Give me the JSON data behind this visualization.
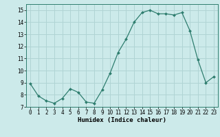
{
  "x": [
    0,
    1,
    2,
    3,
    4,
    5,
    6,
    7,
    8,
    9,
    10,
    11,
    12,
    13,
    14,
    15,
    16,
    17,
    18,
    19,
    20,
    21,
    22,
    23
  ],
  "y": [
    8.9,
    7.9,
    7.5,
    7.3,
    7.7,
    8.5,
    8.2,
    7.4,
    7.3,
    8.4,
    9.8,
    11.5,
    12.6,
    14.0,
    14.8,
    15.0,
    14.7,
    14.7,
    14.6,
    14.8,
    13.3,
    10.9,
    9.0,
    9.5
  ],
  "line_color": "#2e7d6e",
  "marker": "D",
  "marker_size": 2.0,
  "bg_color": "#cceaea",
  "grid_color": "#b0d4d4",
  "xlabel": "Humidex (Indice chaleur)",
  "xlabel_fontsize": 6.5,
  "tick_fontsize": 5.5,
  "ylim": [
    7,
    15.5
  ],
  "yticks": [
    7,
    8,
    9,
    10,
    11,
    12,
    13,
    14,
    15
  ],
  "xlim": [
    -0.5,
    23.5
  ],
  "xticks": [
    0,
    1,
    2,
    3,
    4,
    5,
    6,
    7,
    8,
    9,
    10,
    11,
    12,
    13,
    14,
    15,
    16,
    17,
    18,
    19,
    20,
    21,
    22,
    23
  ]
}
